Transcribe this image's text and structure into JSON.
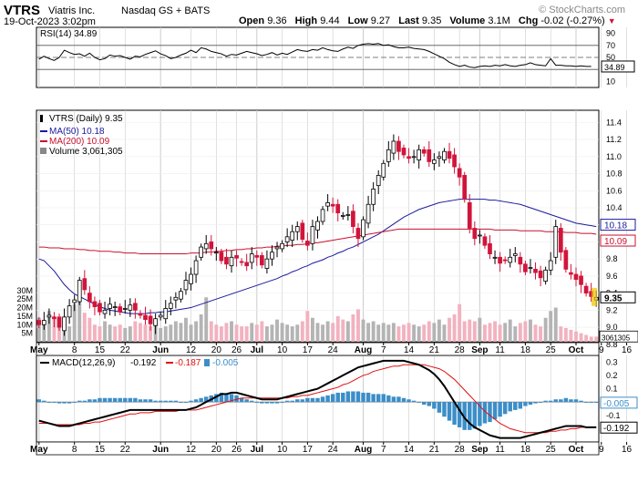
{
  "header": {
    "symbol": "VTRS",
    "company": "Viatris Inc.",
    "exchange": "Nasdaq GS + BATS",
    "datetime": "19-Oct-2023 3:02pm",
    "open_label": "Open",
    "open": "9.36",
    "high_label": "High",
    "high": "9.44",
    "low_label": "Low",
    "low": "9.27",
    "last_label": "Last",
    "last": "9.35",
    "volume_label": "Volume",
    "volume": "3.1M",
    "chg_label": "Chg",
    "chg": "-0.02 (-0.27%)",
    "watermark": "© StockCharts.com"
  },
  "colors": {
    "up": "#ffffff",
    "down": "#d2143a",
    "ma50": "#1a1a9c",
    "ma200": "#c8102e",
    "volume_down": "#f2b2bf",
    "volume_up": "#b4b4b4",
    "macd_hist": "#3c8ec8",
    "macd_line": "#000000",
    "signal_line": "#e01010",
    "grid": "#cccccc"
  },
  "chart_data": [
    {
      "type": "line",
      "panel": "rsi",
      "legend": "RSI(14) 34.89",
      "ylim": [
        0,
        100
      ],
      "ticks": [
        10,
        30,
        50,
        70,
        90
      ],
      "reference_lines": [
        30,
        50,
        70
      ],
      "last_value_label": "34.89",
      "series": [
        {
          "name": "RSI(14)",
          "values": [
            47,
            52,
            48,
            45,
            50,
            62,
            58,
            55,
            56,
            52,
            57,
            50,
            46,
            48,
            54,
            52,
            53,
            50,
            47,
            52,
            51,
            55,
            58,
            61,
            56,
            53,
            48,
            50,
            54,
            57,
            62,
            58,
            66,
            64,
            60,
            58,
            56,
            52,
            55,
            54,
            57,
            60,
            58,
            56,
            53,
            55,
            58,
            54,
            57,
            55,
            59,
            63,
            61,
            60,
            63,
            62,
            66,
            63,
            61,
            60,
            64,
            67,
            65,
            70,
            72,
            73,
            72,
            73,
            70,
            71,
            68,
            66,
            66,
            67,
            65,
            64,
            63,
            60,
            56,
            52,
            48,
            42,
            38,
            35,
            37,
            34,
            33,
            35,
            36,
            35,
            37,
            36,
            38,
            36,
            35,
            37,
            38,
            41,
            38,
            37,
            36,
            48,
            37,
            37,
            36,
            36,
            35,
            36,
            35,
            35
          ]
        }
      ]
    },
    {
      "type": "candlestick",
      "panel": "price",
      "legend": [
        "VTRS (Daily) 9.35",
        "MA(50) 10.18",
        "MA(200) 10.09",
        "Volume 3,061,305"
      ],
      "ylim": [
        8.83,
        11.5
      ],
      "ticks": [
        8.8,
        9.0,
        9.2,
        9.4,
        9.6,
        9.8,
        10.0,
        10.2,
        10.4,
        10.6,
        10.8,
        11.0,
        11.2,
        11.4
      ],
      "last_labels": [
        "10.18",
        "10.09",
        "9.35"
      ],
      "volume_ticks": [
        "5M",
        "10M",
        "15M",
        "20M",
        "25M",
        "30M"
      ],
      "volume_max": 40,
      "volume_last_label": "3061305",
      "close": [
        9.03,
        9.08,
        9.14,
        9.1,
        9.0,
        9.12,
        9.25,
        9.32,
        9.55,
        9.44,
        9.3,
        9.24,
        9.18,
        9.2,
        9.27,
        9.24,
        9.18,
        9.22,
        9.26,
        9.2,
        9.14,
        9.09,
        9.04,
        9.1,
        9.14,
        9.22,
        9.28,
        9.35,
        9.42,
        9.55,
        9.62,
        9.78,
        9.94,
        9.98,
        9.92,
        9.88,
        9.78,
        9.74,
        9.82,
        9.81,
        9.76,
        9.72,
        9.86,
        9.82,
        9.73,
        9.8,
        9.88,
        9.94,
        9.98,
        10.06,
        10.12,
        10.18,
        10.03,
        9.96,
        10.18,
        10.24,
        10.38,
        10.46,
        10.42,
        10.34,
        10.31,
        10.32,
        10.18,
        10.04,
        10.26,
        10.44,
        10.62,
        10.78,
        10.92,
        11.08,
        11.18,
        11.06,
        11.02,
        10.98,
        11.0,
        11.08,
        11.04,
        10.94,
        10.96,
        11.0,
        11.06,
        10.98,
        10.88,
        10.76,
        10.5,
        10.16,
        10.04,
        10.08,
        9.96,
        9.86,
        9.82,
        9.75,
        9.78,
        9.82,
        9.86,
        9.74,
        9.65,
        9.7,
        9.64,
        9.58,
        9.67,
        9.78,
        10.18,
        9.88,
        9.68,
        9.62,
        9.56,
        9.5,
        9.4,
        9.36,
        9.35
      ],
      "volume": [
        14,
        12,
        18,
        15,
        11,
        10,
        9,
        22,
        25,
        17,
        14,
        10,
        9,
        12,
        10,
        9,
        10,
        8,
        9,
        12,
        11,
        10,
        9,
        10,
        8,
        9,
        10,
        12,
        11,
        14,
        10,
        12,
        16,
        26,
        12,
        10,
        9,
        11,
        12,
        10,
        9,
        9,
        11,
        10,
        12,
        9,
        10,
        13,
        11,
        10,
        9,
        10,
        12,
        18,
        14,
        11,
        10,
        12,
        11,
        15,
        13,
        12,
        16,
        19,
        13,
        11,
        12,
        10,
        11,
        10,
        11,
        9,
        10,
        11,
        10,
        9,
        10,
        12,
        11,
        13,
        10,
        14,
        16,
        22,
        12,
        13,
        12,
        14,
        10,
        11,
        12,
        10,
        11,
        13,
        9,
        11,
        12,
        13,
        10,
        9,
        14,
        18,
        20,
        9,
        8,
        7,
        6,
        5,
        4,
        3,
        3
      ],
      "series": [
        {
          "name": "MA(50)",
          "values": [
            9.8,
            9.78,
            9.72,
            9.66,
            9.58,
            9.5,
            9.44,
            9.39,
            9.36,
            9.33,
            9.3,
            9.27,
            9.24,
            9.22,
            9.2,
            9.19,
            9.18,
            9.17,
            9.16,
            9.16,
            9.16,
            9.16,
            9.17,
            9.17,
            9.18,
            9.18,
            9.19,
            9.2,
            9.21,
            9.22,
            9.23,
            9.25,
            9.27,
            9.29,
            9.31,
            9.33,
            9.35,
            9.37,
            9.39,
            9.41,
            9.43,
            9.45,
            9.47,
            9.49,
            9.51,
            9.53,
            9.55,
            9.57,
            9.6,
            9.62,
            9.65,
            9.67,
            9.7,
            9.72,
            9.75,
            9.77,
            9.79,
            9.82,
            9.84,
            9.87,
            9.89,
            9.92,
            9.94,
            9.97,
            10.0,
            10.03,
            10.06,
            10.09,
            10.13,
            10.17,
            10.21,
            10.25,
            10.29,
            10.32,
            10.35,
            10.38,
            10.4,
            10.42,
            10.44,
            10.46,
            10.47,
            10.48,
            10.49,
            10.5,
            10.5,
            10.5,
            10.5,
            10.5,
            10.5,
            10.49,
            10.49,
            10.48,
            10.47,
            10.46,
            10.45,
            10.44,
            10.42,
            10.4,
            10.38,
            10.36,
            10.34,
            10.32,
            10.3,
            10.28,
            10.26,
            10.24,
            10.22,
            10.21,
            10.2,
            10.19,
            10.18
          ]
        },
        {
          "name": "MA(200)",
          "values": [
            9.94,
            9.94,
            9.93,
            9.93,
            9.93,
            9.92,
            9.92,
            9.92,
            9.91,
            9.91,
            9.9,
            9.9,
            9.89,
            9.89,
            9.89,
            9.88,
            9.88,
            9.87,
            9.87,
            9.87,
            9.86,
            9.86,
            9.86,
            9.86,
            9.86,
            9.86,
            9.86,
            9.86,
            9.86,
            9.86,
            9.87,
            9.87,
            9.87,
            9.88,
            9.88,
            9.89,
            9.89,
            9.9,
            9.9,
            9.91,
            9.91,
            9.92,
            9.92,
            9.93,
            9.93,
            9.94,
            9.94,
            9.95,
            9.95,
            9.96,
            9.96,
            9.97,
            9.97,
            9.98,
            9.99,
            9.99,
            10.0,
            10.01,
            10.02,
            10.03,
            10.04,
            10.05,
            10.06,
            10.07,
            10.08,
            10.09,
            10.1,
            10.11,
            10.12,
            10.13,
            10.14,
            10.15,
            10.15,
            10.15,
            10.15,
            10.15,
            10.15,
            10.15,
            10.15,
            10.15,
            10.15,
            10.15,
            10.15,
            10.15,
            10.15,
            10.15,
            10.15,
            10.15,
            10.15,
            10.15,
            10.14,
            10.14,
            10.14,
            10.14,
            10.14,
            10.13,
            10.13,
            10.13,
            10.13,
            10.13,
            10.12,
            10.12,
            10.12,
            10.12,
            10.11,
            10.11,
            10.11,
            10.1,
            10.1,
            10.1,
            10.09
          ]
        }
      ]
    },
    {
      "type": "line",
      "panel": "macd",
      "legend": [
        "MACD(12,26,9)",
        "-0.192",
        "-0.187",
        "-0.005"
      ],
      "ylim": [
        -0.3,
        0.35
      ],
      "ticks": [
        0.3,
        0.2,
        0.1,
        0.0,
        -0.1,
        -0.2
      ],
      "last_labels": [
        "-0.005",
        "-0.192"
      ],
      "series": [
        {
          "name": "MACD",
          "values": [
            -0.14,
            -0.15,
            -0.16,
            -0.17,
            -0.18,
            -0.18,
            -0.18,
            -0.17,
            -0.16,
            -0.15,
            -0.14,
            -0.13,
            -0.12,
            -0.11,
            -0.1,
            -0.09,
            -0.08,
            -0.07,
            -0.06,
            -0.06,
            -0.06,
            -0.06,
            -0.06,
            -0.06,
            -0.06,
            -0.06,
            -0.06,
            -0.06,
            -0.06,
            -0.06,
            -0.05,
            -0.04,
            -0.02,
            0.0,
            0.02,
            0.04,
            0.06,
            0.06,
            0.07,
            0.07,
            0.06,
            0.05,
            0.04,
            0.03,
            0.02,
            0.02,
            0.02,
            0.02,
            0.03,
            0.04,
            0.05,
            0.06,
            0.07,
            0.08,
            0.09,
            0.1,
            0.12,
            0.14,
            0.16,
            0.18,
            0.2,
            0.22,
            0.24,
            0.26,
            0.27,
            0.28,
            0.29,
            0.3,
            0.31,
            0.31,
            0.31,
            0.31,
            0.31,
            0.3,
            0.29,
            0.28,
            0.26,
            0.24,
            0.21,
            0.17,
            0.12,
            0.06,
            0.0,
            -0.06,
            -0.12,
            -0.16,
            -0.19,
            -0.21,
            -0.23,
            -0.25,
            -0.26,
            -0.27,
            -0.27,
            -0.27,
            -0.27,
            -0.27,
            -0.26,
            -0.25,
            -0.24,
            -0.23,
            -0.22,
            -0.21,
            -0.2,
            -0.19,
            -0.18,
            -0.18,
            -0.18,
            -0.18,
            -0.19,
            -0.19,
            -0.19
          ]
        },
        {
          "name": "Signal",
          "values": [
            -0.16,
            -0.16,
            -0.16,
            -0.17,
            -0.17,
            -0.17,
            -0.17,
            -0.17,
            -0.17,
            -0.16,
            -0.16,
            -0.15,
            -0.15,
            -0.14,
            -0.13,
            -0.12,
            -0.11,
            -0.1,
            -0.09,
            -0.09,
            -0.08,
            -0.08,
            -0.08,
            -0.07,
            -0.07,
            -0.07,
            -0.07,
            -0.07,
            -0.06,
            -0.06,
            -0.06,
            -0.06,
            -0.05,
            -0.04,
            -0.03,
            -0.02,
            -0.01,
            0.0,
            0.01,
            0.02,
            0.03,
            0.03,
            0.03,
            0.03,
            0.03,
            0.03,
            0.03,
            0.03,
            0.03,
            0.03,
            0.04,
            0.04,
            0.05,
            0.05,
            0.06,
            0.07,
            0.08,
            0.09,
            0.1,
            0.11,
            0.13,
            0.14,
            0.16,
            0.18,
            0.2,
            0.21,
            0.23,
            0.24,
            0.25,
            0.26,
            0.27,
            0.27,
            0.28,
            0.28,
            0.28,
            0.28,
            0.28,
            0.27,
            0.26,
            0.25,
            0.23,
            0.2,
            0.17,
            0.13,
            0.09,
            0.05,
            0.01,
            -0.03,
            -0.07,
            -0.1,
            -0.13,
            -0.16,
            -0.18,
            -0.2,
            -0.21,
            -0.22,
            -0.23,
            -0.23,
            -0.23,
            -0.23,
            -0.23,
            -0.22,
            -0.22,
            -0.21,
            -0.21,
            -0.2,
            -0.2,
            -0.19,
            -0.19,
            -0.19,
            -0.187
          ]
        },
        {
          "name": "Histogram",
          "values": [
            0.02,
            0.01,
            0.0,
            0.0,
            -0.01,
            -0.01,
            -0.01,
            0.0,
            0.01,
            0.01,
            0.02,
            0.02,
            0.03,
            0.03,
            0.03,
            0.03,
            0.03,
            0.03,
            0.03,
            0.03,
            0.02,
            0.02,
            0.02,
            0.01,
            0.01,
            0.01,
            0.01,
            0.01,
            0.0,
            0.0,
            0.01,
            0.02,
            0.03,
            0.04,
            0.05,
            0.06,
            0.07,
            0.06,
            0.06,
            0.05,
            0.03,
            0.02,
            0.01,
            0.0,
            -0.01,
            -0.01,
            -0.01,
            -0.01,
            0.0,
            0.01,
            0.01,
            0.02,
            0.02,
            0.03,
            0.03,
            0.03,
            0.04,
            0.05,
            0.06,
            0.07,
            0.07,
            0.08,
            0.08,
            0.08,
            0.07,
            0.07,
            0.06,
            0.06,
            0.06,
            0.05,
            0.04,
            0.04,
            0.03,
            0.02,
            0.01,
            0.0,
            -0.02,
            -0.03,
            -0.05,
            -0.08,
            -0.11,
            -0.14,
            -0.17,
            -0.19,
            -0.21,
            -0.21,
            -0.2,
            -0.18,
            -0.16,
            -0.15,
            -0.13,
            -0.11,
            -0.09,
            -0.07,
            -0.06,
            -0.05,
            -0.03,
            -0.02,
            -0.01,
            0.0,
            0.01,
            0.01,
            0.02,
            0.02,
            0.03,
            0.02,
            0.02,
            0.01,
            0.0,
            0.0,
            -0.005
          ]
        }
      ]
    }
  ],
  "x_axis": {
    "labels": [
      {
        "text": "May",
        "i": 0,
        "bold": true
      },
      {
        "text": "8",
        "i": 7
      },
      {
        "text": "15",
        "i": 12
      },
      {
        "text": "22",
        "i": 17
      },
      {
        "text": "Jun",
        "i": 24,
        "bold": true
      },
      {
        "text": "12",
        "i": 30
      },
      {
        "text": "20",
        "i": 35
      },
      {
        "text": "26",
        "i": 39
      },
      {
        "text": "Jul",
        "i": 43,
        "bold": true
      },
      {
        "text": "10",
        "i": 48
      },
      {
        "text": "17",
        "i": 53
      },
      {
        "text": "24",
        "i": 58
      },
      {
        "text": "Aug",
        "i": 64,
        "bold": true
      },
      {
        "text": "7",
        "i": 68
      },
      {
        "text": "14",
        "i": 73
      },
      {
        "text": "21",
        "i": 78
      },
      {
        "text": "28",
        "i": 83
      },
      {
        "text": "Sep",
        "i": 87,
        "bold": true
      },
      {
        "text": "11",
        "i": 91
      },
      {
        "text": "18",
        "i": 96
      },
      {
        "text": "25",
        "i": 101
      },
      {
        "text": "Oct",
        "i": 106,
        "bold": true
      },
      {
        "text": "9",
        "i": 111
      },
      {
        "text": "16",
        "i": 116
      }
    ]
  }
}
